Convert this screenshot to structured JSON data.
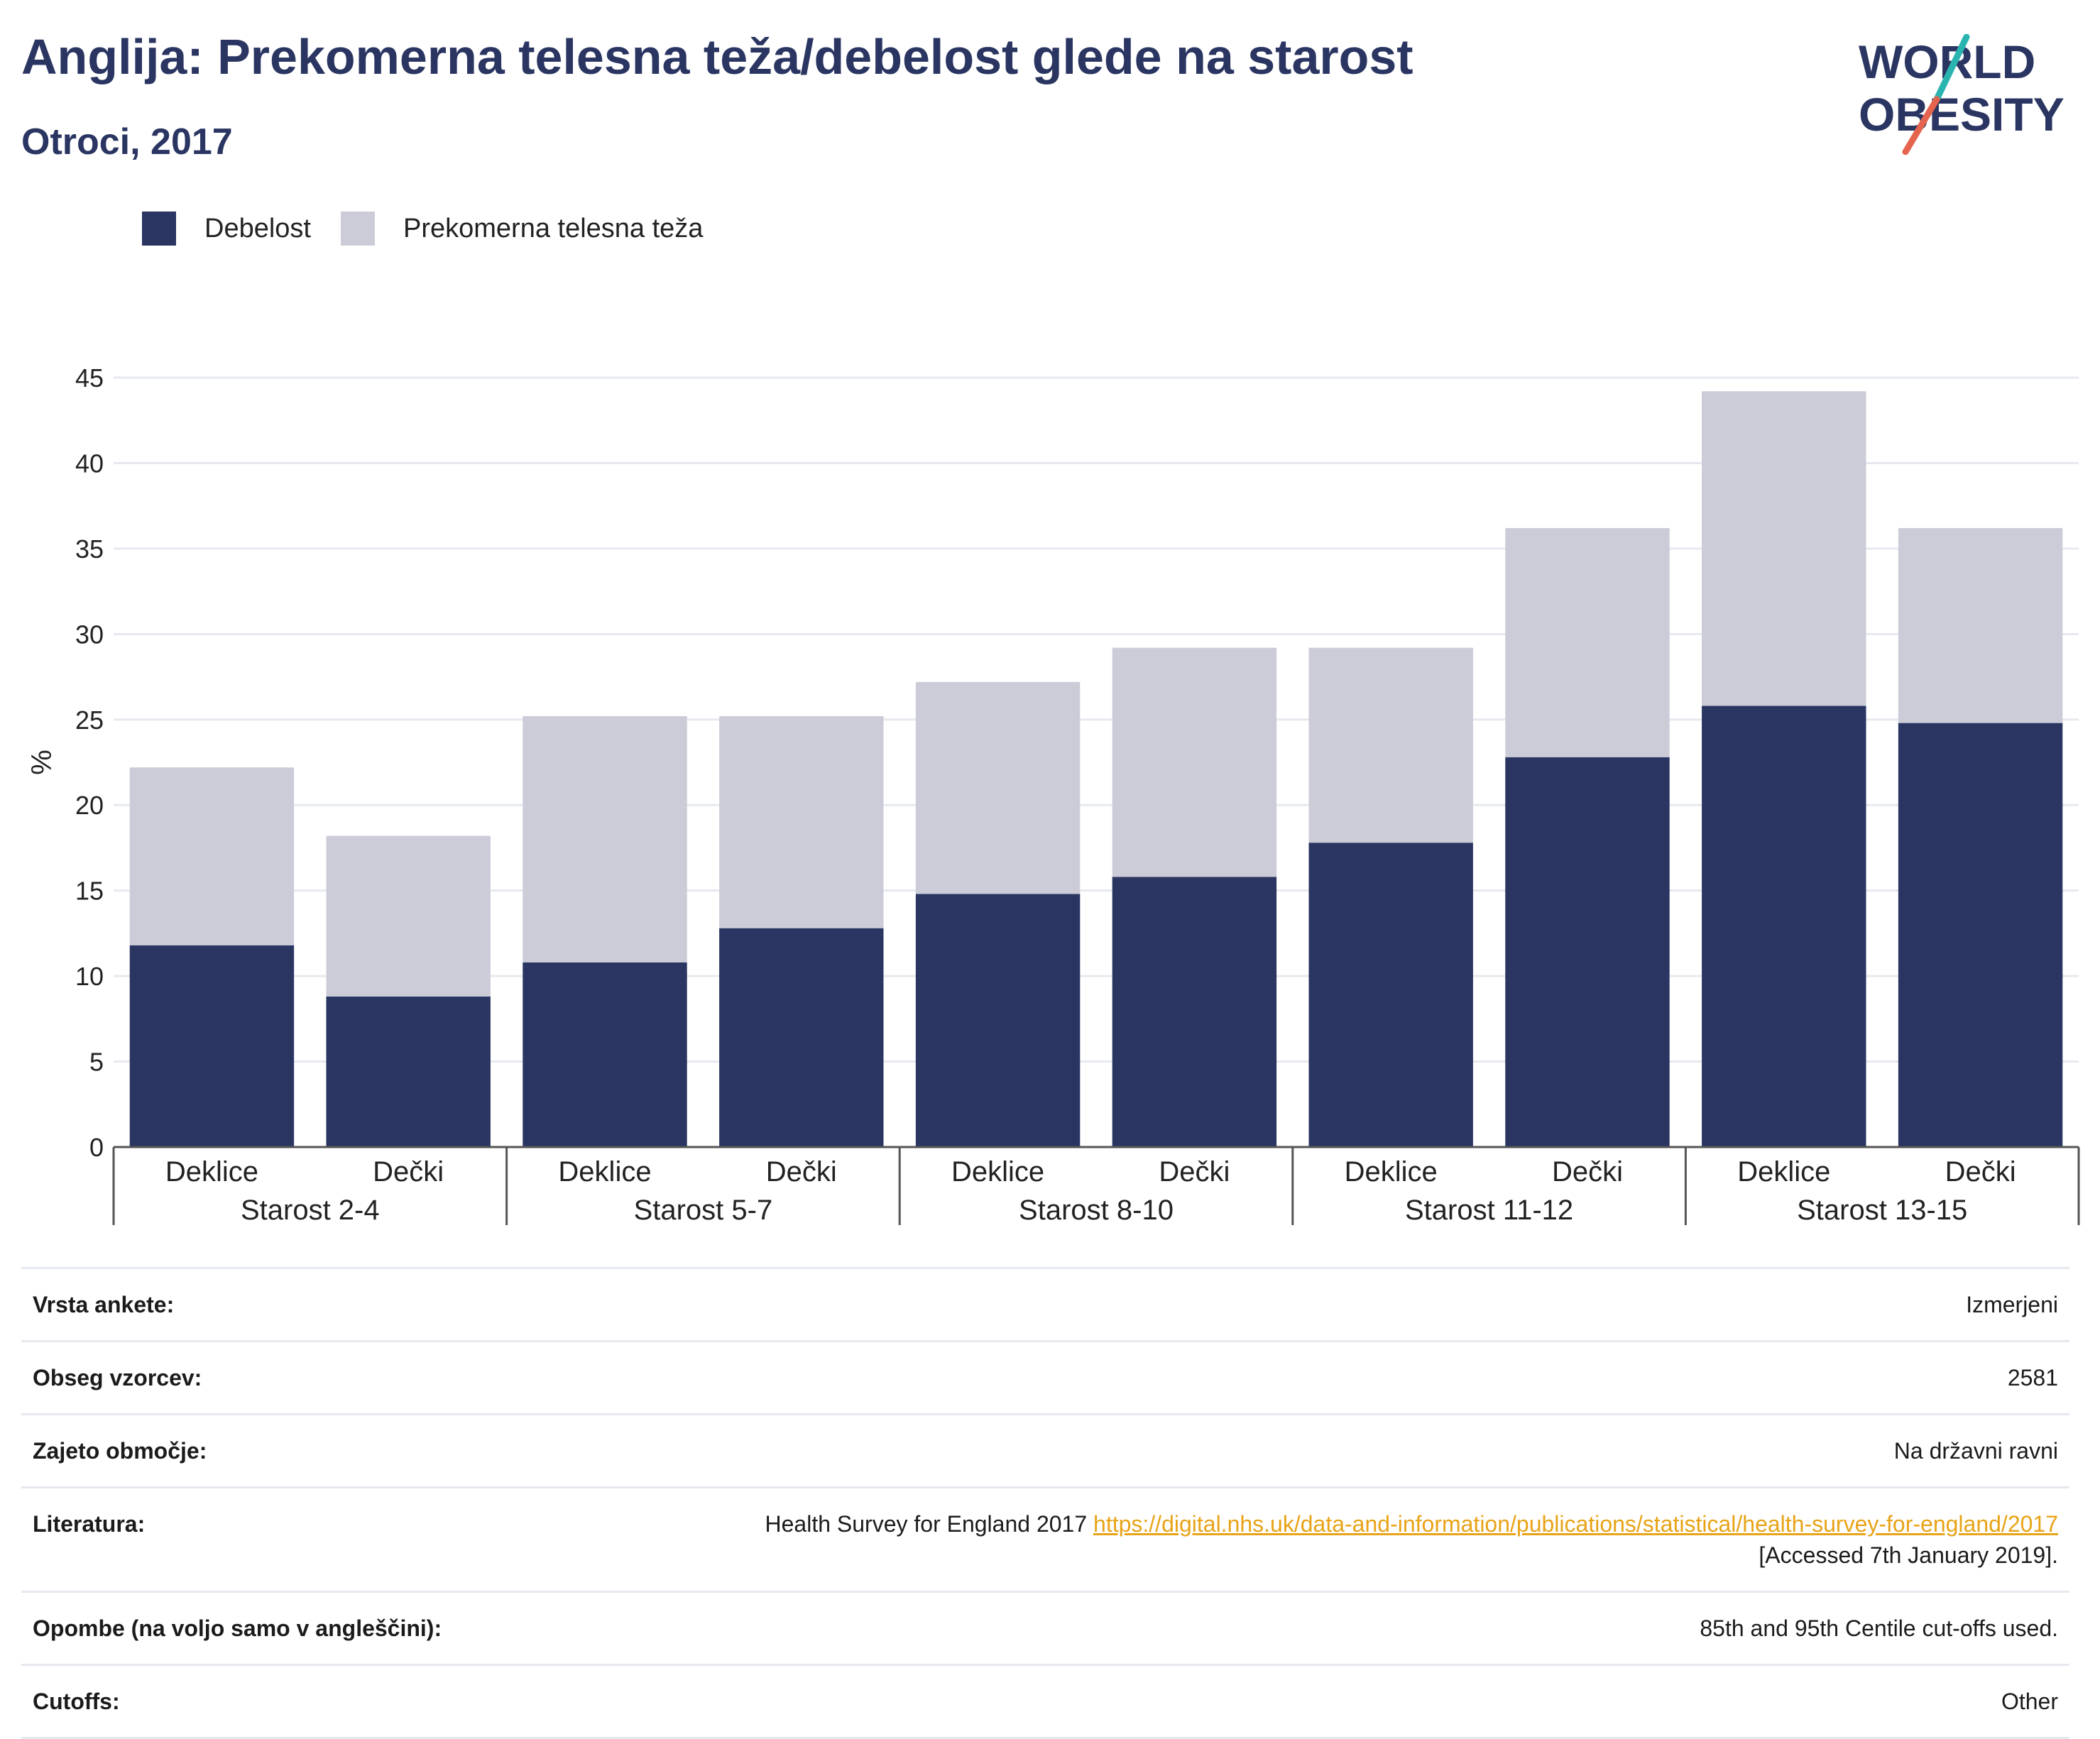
{
  "header": {
    "title": "Anglija: Prekomerna telesna teža/debelost glede na starost",
    "subtitle": "Otroci, 2017"
  },
  "logo": {
    "line1": "WORLD",
    "line2": "OBESITY",
    "icon": "world-obesity-logo"
  },
  "colors": {
    "obesity": "#2a3562",
    "overweight": "#cbccd8",
    "link": "#e8a317",
    "title": "#2a3562"
  },
  "legend": [
    {
      "label": "Debelost",
      "color": "#2a3562"
    },
    {
      "label": "Prekomerna telesna teža",
      "color": "#cbccd8"
    }
  ],
  "chart_data": {
    "type": "bar",
    "stacked": true,
    "ylabel": "%",
    "ylim": [
      0,
      45
    ],
    "yticks": [
      0,
      5,
      10,
      15,
      20,
      25,
      30,
      35,
      40,
      45
    ],
    "grid": true,
    "legend_position": "top-left",
    "groups": [
      "Starost 2-4",
      "Starost 5-7",
      "Starost 8-10",
      "Starost 11-12",
      "Starost 13-15"
    ],
    "categories": [
      "Deklice",
      "Dečki",
      "Deklice",
      "Dečki",
      "Deklice",
      "Dečki",
      "Deklice",
      "Dečki",
      "Deklice",
      "Dečki"
    ],
    "category_group_index": [
      0,
      0,
      1,
      1,
      2,
      2,
      3,
      3,
      4,
      4
    ],
    "series": [
      {
        "name": "Debelost",
        "values": [
          11.8,
          8.8,
          10.8,
          12.8,
          14.8,
          15.8,
          17.8,
          22.8,
          25.8,
          24.8
        ]
      },
      {
        "name": "Prekomerna telesna teža",
        "values": [
          10.4,
          9.4,
          14.4,
          12.4,
          12.4,
          13.4,
          11.4,
          13.4,
          18.4,
          11.4
        ]
      }
    ]
  },
  "meta": [
    {
      "label": "Vrsta ankete:",
      "value": "Izmerjeni"
    },
    {
      "label": "Obseg vzorcev:",
      "value": "2581"
    },
    {
      "label": "Zajeto območje:",
      "value": "Na državni ravni"
    },
    {
      "label": "Literatura:",
      "value": "Health Survey for England 2017",
      "link": "https://digital.nhs.uk/data-and-information/publications/statistical/health-survey-for-england/2017",
      "value2": "[Accessed 7th January 2019]."
    },
    {
      "label": "Opombe (na voljo samo v angleščini):",
      "value": "85th and 95th Centile cut-offs used."
    },
    {
      "label": "Cutoffs:",
      "value": "Other"
    }
  ]
}
